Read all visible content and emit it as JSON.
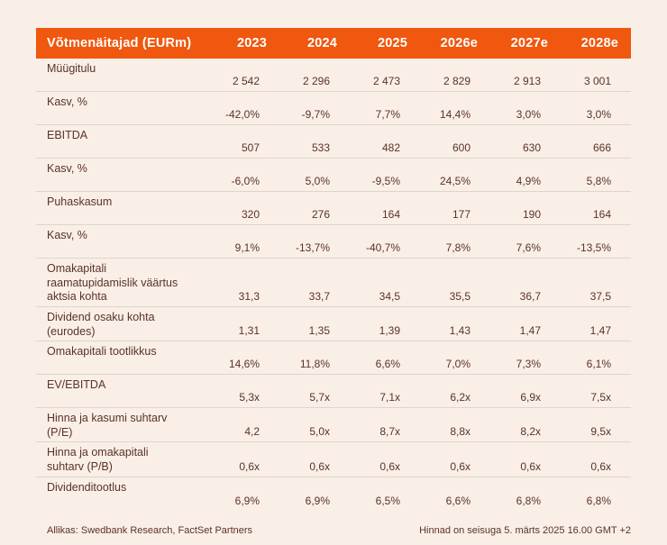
{
  "table": {
    "header": {
      "label": "Võtmenäitajad (EURm)",
      "years": [
        "2023",
        "2024",
        "2025",
        "2026e",
        "2027e",
        "2028e"
      ]
    },
    "rows": [
      {
        "label": "Müügitulu",
        "values": [
          "2 542",
          "2 296",
          "2 473",
          "2 829",
          "2 913",
          "3 001"
        ]
      },
      {
        "label": "Kasv, %",
        "values": [
          "-42,0%",
          "-9,7%",
          "7,7%",
          "14,4%",
          "3,0%",
          "3,0%"
        ]
      },
      {
        "label": "EBITDA",
        "values": [
          "507",
          "533",
          "482",
          "600",
          "630",
          "666"
        ]
      },
      {
        "label": "Kasv, %",
        "values": [
          "-6,0%",
          "5,0%",
          "-9,5%",
          "24,5%",
          "4,9%",
          "5,8%"
        ]
      },
      {
        "label": "Puhaskasum",
        "values": [
          "320",
          "276",
          "164",
          "177",
          "190",
          "164"
        ]
      },
      {
        "label": "Kasv, %",
        "values": [
          "9,1%",
          "-13,7%",
          "-40,7%",
          "7,8%",
          "7,6%",
          "-13,5%"
        ]
      },
      {
        "label": "Omakapitali raamatupidamislik väärtus aktsia kohta",
        "values": [
          "31,3",
          "33,7",
          "34,5",
          "35,5",
          "36,7",
          "37,5"
        ]
      },
      {
        "label": "Dividend osaku kohta (eurodes)",
        "values": [
          "1,31",
          "1,35",
          "1,39",
          "1,43",
          "1,47",
          "1,47"
        ]
      },
      {
        "label": "Omakapitali tootlikkus",
        "values": [
          "14,6%",
          "11,8%",
          "6,6%",
          "7,0%",
          "7,3%",
          "6,1%"
        ]
      },
      {
        "label": "EV/EBITDA",
        "values": [
          "5,3x",
          "5,7x",
          "7,1x",
          "6,2x",
          "6,9x",
          "7,5x"
        ]
      },
      {
        "label": "Hinna ja kasumi suhtarv (P/E)",
        "values": [
          "4,2",
          "5,0x",
          "8,7x",
          "8,8x",
          "8,2x",
          "9,5x"
        ]
      },
      {
        "label": "Hinna ja omakapitali suhtarv (P/B)",
        "values": [
          "0,6x",
          "0,6x",
          "0,6x",
          "0,6x",
          "0,6x",
          "0,6x"
        ]
      },
      {
        "label": "Dividenditootlus",
        "values": [
          "6,9%",
          "6,9%",
          "6,5%",
          "6,6%",
          "6,8%",
          "6,8%"
        ]
      }
    ]
  },
  "footer": {
    "source": "Allikas: Swedbank Research, FactSet Partners",
    "note": "Hinnad on seisuga 5. märts 2025 16.00 GMT +2"
  },
  "colors": {
    "accent": "#f0570f",
    "background": "#f9efe6",
    "text": "#5a322a",
    "divider": "#ddd5cc"
  }
}
